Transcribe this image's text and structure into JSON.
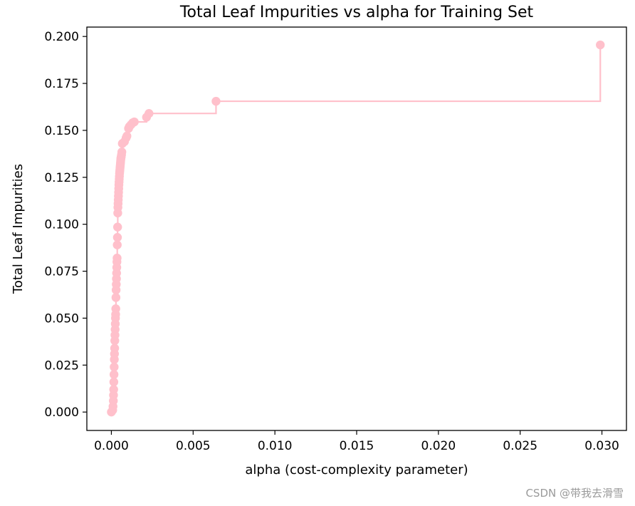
{
  "chart_data": {
    "type": "line",
    "title": "Total Leaf Impurities vs alpha for Training Set",
    "xlabel": "alpha (cost-complexity parameter)",
    "ylabel": "Total Leaf Impurities",
    "xlim": [
      -0.0015,
      0.0315
    ],
    "ylim": [
      -0.0098,
      0.205
    ],
    "xticks": [
      0.0,
      0.005,
      0.01,
      0.015,
      0.02,
      0.025,
      0.03
    ],
    "xtick_labels": [
      "0.000",
      "0.005",
      "0.010",
      "0.015",
      "0.020",
      "0.025",
      "0.030"
    ],
    "yticks": [
      0.0,
      0.025,
      0.05,
      0.075,
      0.1,
      0.125,
      0.15,
      0.175,
      0.2
    ],
    "ytick_labels": [
      "0.000",
      "0.025",
      "0.050",
      "0.075",
      "0.100",
      "0.125",
      "0.150",
      "0.175",
      "0.200"
    ],
    "drawstyle": "steps-post",
    "marker": "o",
    "color": "#ffc0cb",
    "grid": false,
    "legend": false,
    "series": [
      {
        "x": [
          0.0,
          8e-05,
          0.0001,
          0.00012,
          0.00013,
          0.00014,
          0.00015,
          0.00016,
          0.00017,
          0.00018,
          0.00019,
          0.0002,
          0.00021,
          0.00022,
          0.00023,
          0.00024,
          0.00025,
          0.00026,
          0.00027,
          0.00028,
          0.00029,
          0.0003,
          0.00031,
          0.00032,
          0.00033,
          0.00034,
          0.00035,
          0.00036,
          0.00037,
          0.00038,
          0.00039,
          0.0004,
          0.00041,
          0.00042,
          0.00043,
          0.00044,
          0.00045,
          0.00046,
          0.00047,
          0.00048,
          0.00049,
          0.0005,
          0.00051,
          0.00052,
          0.00053,
          0.00054,
          0.00055,
          0.00056,
          0.00057,
          0.00058,
          0.00059,
          0.0006,
          0.00062,
          0.00064,
          0.00067,
          0.0008,
          0.0009,
          0.00095,
          0.00105,
          0.0011,
          0.0012,
          0.0013,
          0.0014,
          0.00215,
          0.0023,
          0.0064,
          0.0299
        ],
        "y": [
          0.0,
          0.001,
          0.003,
          0.006,
          0.009,
          0.012,
          0.016,
          0.02,
          0.024,
          0.028,
          0.031,
          0.034,
          0.038,
          0.041,
          0.044,
          0.047,
          0.05,
          0.052,
          0.055,
          0.061,
          0.065,
          0.068,
          0.071,
          0.074,
          0.077,
          0.08,
          0.082,
          0.089,
          0.093,
          0.0985,
          0.106,
          0.109,
          0.111,
          0.113,
          0.115,
          0.117,
          0.119,
          0.121,
          0.1225,
          0.124,
          0.1255,
          0.127,
          0.128,
          0.129,
          0.13,
          0.131,
          0.132,
          0.133,
          0.134,
          0.135,
          0.1355,
          0.136,
          0.137,
          0.1385,
          0.143,
          0.144,
          0.146,
          0.147,
          0.151,
          0.152,
          0.153,
          0.154,
          0.1545,
          0.157,
          0.159,
          0.1655,
          0.1955
        ]
      }
    ]
  },
  "watermark": "CSDN @带我去滑雪"
}
